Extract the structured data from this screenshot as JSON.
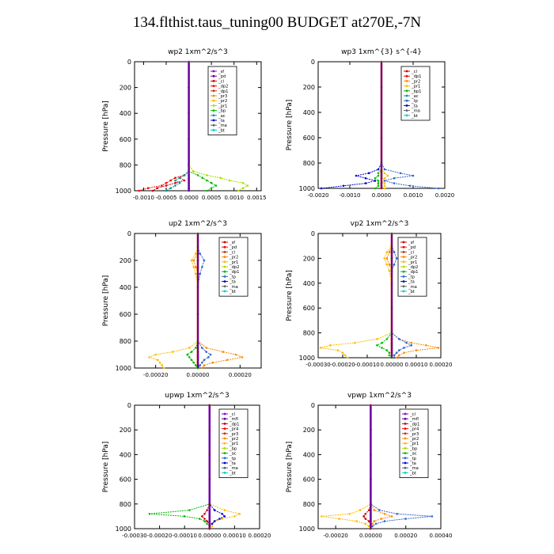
{
  "title": "134.flthist.taus_tuning00  BUDGET at270E,-7N",
  "chart_data": [
    {
      "type": "line",
      "title": "wp2   1xm^2/s^3",
      "ylabel": "Pressure [hPa]",
      "xlim": [
        -0.0012,
        0.0016
      ],
      "ylim": [
        1000,
        0
      ],
      "xticks": [
        -0.001,
        -0.0005,
        0.0,
        0.0005,
        0.001,
        0.0015
      ],
      "xticklabels": [
        "-0.0010",
        "-0.0005",
        "0.0000",
        "0.0005",
        "0.0010",
        "0.0015"
      ],
      "yticks": [
        0,
        200,
        400,
        600,
        800,
        1000
      ],
      "legend": [
        "_sf",
        "_pd",
        "_cl",
        "_dp2",
        "_dp1",
        "_pr3",
        "_pr2",
        "_pr1",
        "_bp",
        "_ac",
        "_ta",
        "_ma",
        "_bt"
      ],
      "colors": [
        "#8800cc",
        "#660099",
        "#cc0000",
        "#ff0000",
        "#cc3300",
        "#ff8800",
        "#ffbb00",
        "#aadd00",
        "#00bb00",
        "#009999",
        "#0000cc",
        "#666666",
        "#00cccc"
      ],
      "p": [
        0,
        200,
        400,
        600,
        800,
        850,
        880,
        900,
        920,
        940,
        960,
        980,
        1000
      ],
      "series": [
        {
          "name": "_sf",
          "values": [
            0,
            0,
            0,
            0,
            0,
            0,
            0,
            0,
            0,
            0,
            0,
            0,
            0
          ]
        },
        {
          "name": "_cl",
          "values": [
            0,
            0,
            0,
            0,
            0,
            0,
            -0.0001,
            -0.0002,
            -0.0001,
            -0.0003,
            -0.0005,
            -0.0007,
            -0.0008
          ]
        },
        {
          "name": "_dp2",
          "values": [
            0,
            0,
            0,
            0,
            0,
            0,
            -0.0001,
            -0.0003,
            -0.0004,
            -0.0005,
            -0.0006,
            -0.0009,
            -0.0011
          ]
        },
        {
          "name": "_pr1",
          "values": [
            0,
            0,
            0,
            0,
            0,
            0.0001,
            0.0004,
            0.0007,
            0.0009,
            0.0012,
            0.0013,
            0.0012,
            0.0011
          ]
        },
        {
          "name": "_bp",
          "values": [
            0,
            0,
            0,
            0,
            0,
            0,
            0.0002,
            0.0003,
            0.0004,
            0.0005,
            0.0006,
            0.0005,
            0.0004
          ]
        },
        {
          "name": "_ac",
          "values": [
            0,
            0,
            0,
            0,
            0,
            0,
            -0.0001,
            -0.0002,
            -0.0003,
            -0.0002,
            -0.0003,
            -0.0004,
            -0.0005
          ]
        }
      ]
    },
    {
      "type": "line",
      "title": "wp3   1xm^{3} s^{-4}",
      "ylabel": "Pressure [hPa]",
      "xlim": [
        -0.002,
        0.002
      ],
      "ylim": [
        1000,
        0
      ],
      "xticks": [
        -0.002,
        -0.001,
        0.0,
        0.001,
        0.002
      ],
      "xticklabels": [
        "-0.0020",
        "-0.0010",
        "0.0000",
        "0.0010",
        "0.0020"
      ],
      "yticks": [
        0,
        200,
        400,
        600,
        800,
        1000
      ],
      "legend": [
        "_cl",
        "_dp1",
        "_pr2",
        "_pr1",
        "_bp1",
        "_ac",
        "_tp",
        "_ta",
        "_ma",
        "_bt"
      ],
      "colors": [
        "#cc0000",
        "#ff0000",
        "#ff8800",
        "#ffbb00",
        "#00bb00",
        "#009999",
        "#3366cc",
        "#0000cc",
        "#666666",
        "#00cccc"
      ],
      "p": [
        0,
        200,
        400,
        600,
        800,
        850,
        880,
        900,
        920,
        940,
        960,
        980,
        1000
      ],
      "series": [
        {
          "name": "_cl",
          "values": [
            0,
            0,
            0,
            0,
            0,
            0,
            0,
            0,
            0,
            0,
            0,
            0,
            0
          ]
        },
        {
          "name": "_tp",
          "values": [
            0,
            0,
            0,
            0,
            0,
            0.0001,
            0.0006,
            0.001,
            0.0004,
            0.0001,
            0.0004,
            0.0009,
            0.0018
          ]
        },
        {
          "name": "_ta",
          "values": [
            0,
            0,
            0,
            0,
            0,
            -0.0001,
            -0.0004,
            -0.0008,
            -0.0005,
            -0.0002,
            -0.0005,
            -0.0012,
            -0.0019
          ]
        },
        {
          "name": "_pr1",
          "values": [
            0,
            0,
            0,
            0,
            0,
            0,
            0.0001,
            0.0002,
            0.0001,
            0,
            0.0001,
            0.0001,
            0.0001
          ]
        },
        {
          "name": "_bp1",
          "values": [
            0,
            0,
            0,
            0,
            0,
            0,
            -0.0001,
            -0.0001,
            -0.0002,
            -0.0001,
            -0.0001,
            -0.0001,
            -0.0002
          ]
        }
      ]
    },
    {
      "type": "line",
      "title": "up2   1xm^2/s^3",
      "ylabel": "Pressure [hPa]",
      "xlim": [
        -0.0003,
        0.0003
      ],
      "ylim": [
        1000,
        0
      ],
      "xticks": [
        -0.0002,
        0.0,
        0.0002
      ],
      "xticklabels": [
        "-0.00020",
        "0.00000",
        "0.00020"
      ],
      "yticks": [
        0,
        200,
        400,
        600,
        800,
        1000
      ],
      "legend": [
        "_sf",
        "_pd",
        "_cl",
        "_pr2",
        "_pr1",
        "_dp2",
        "_dp1",
        "_tp",
        "_ta",
        "_ma",
        "_bt"
      ],
      "colors": [
        "#cc0000",
        "#ff0000",
        "#cc3300",
        "#ff8800",
        "#ffbb00",
        "#aadd00",
        "#00bb00",
        "#3366cc",
        "#0000cc",
        "#666666",
        "#00cccc"
      ],
      "p": [
        0,
        100,
        150,
        200,
        250,
        300,
        400,
        600,
        800,
        850,
        880,
        900,
        920,
        940,
        960,
        980,
        1000
      ],
      "series": [
        {
          "name": "_sf",
          "values": [
            0,
            0,
            0,
            0,
            0,
            0,
            0,
            0,
            0,
            0,
            0,
            0,
            0,
            0,
            0,
            0,
            0
          ]
        },
        {
          "name": "_pr2",
          "values": [
            0,
            0,
            0,
            -2e-05,
            -1e-05,
            0,
            0,
            0,
            0,
            4e-05,
            0.00012,
            0.00018,
            0.00021,
            0.00014,
            7e-05,
            3e-05,
            2e-05
          ]
        },
        {
          "name": "_pr1",
          "values": [
            0,
            0,
            -1e-05,
            -3e-05,
            -2e-05,
            -1e-05,
            0,
            0,
            0,
            -4e-05,
            -0.00012,
            -0.0002,
            -0.00023,
            -0.00019,
            -0.00018,
            -0.00017,
            -0.00016
          ]
        },
        {
          "name": "_tp",
          "values": [
            0,
            0,
            1e-05,
            3e-05,
            2e-05,
            1e-05,
            0,
            0,
            0,
            2e-05,
            4e-05,
            6e-05,
            5e-05,
            3e-05,
            2e-05,
            1e-05,
            0
          ]
        },
        {
          "name": "_dp1",
          "values": [
            0,
            0,
            0,
            0,
            0,
            0,
            0,
            0,
            0,
            -1e-05,
            -3e-05,
            -5e-05,
            -4e-05,
            -3e-05,
            -2e-05,
            -1e-05,
            0
          ]
        }
      ]
    },
    {
      "type": "line",
      "title": "vp2   1xm^2/s^3",
      "ylabel": "Pressure [hPa]",
      "xlim": [
        -0.0003,
        0.0002
      ],
      "ylim": [
        1000,
        0
      ],
      "xticks": [
        -0.0003,
        -0.0002,
        -0.0001,
        0.0,
        0.0001,
        0.0002
      ],
      "xticklabels": [
        "-0.00030",
        "-0.00020",
        "-0.00010",
        "0.00000",
        "0.00010",
        "0.00020"
      ],
      "yticks": [
        0,
        200,
        400,
        600,
        800,
        1000
      ],
      "legend": [
        "_sf",
        "_pd",
        "_cl",
        "_pr2",
        "_pr1",
        "_dp2",
        "_dp1",
        "_tp",
        "_ta",
        "_ma",
        "_bt"
      ],
      "colors": [
        "#cc0000",
        "#ff0000",
        "#cc3300",
        "#ff8800",
        "#ffbb00",
        "#aadd00",
        "#00bb00",
        "#3366cc",
        "#0000cc",
        "#666666",
        "#00cccc"
      ],
      "p": [
        0,
        100,
        150,
        200,
        250,
        300,
        400,
        600,
        800,
        850,
        880,
        900,
        920,
        940,
        960,
        980,
        1000
      ],
      "series": [
        {
          "name": "_sf",
          "values": [
            0,
            0,
            0,
            0,
            0,
            0,
            0,
            0,
            0,
            0,
            0,
            0,
            0,
            0,
            0,
            0,
            0
          ]
        },
        {
          "name": "_pr2",
          "values": [
            0,
            0,
            -1e-05,
            -2e-05,
            -1e-05,
            0,
            0,
            0,
            0,
            3e-05,
            8e-05,
            0.00014,
            0.00019,
            0.0001,
            5e-05,
            3e-05,
            2e-05
          ]
        },
        {
          "name": "_pr1",
          "values": [
            0,
            0,
            -2e-05,
            -3e-05,
            -2e-05,
            -1e-05,
            0,
            0,
            0,
            -6e-05,
            -0.00015,
            -0.00025,
            -0.00029,
            -0.00022,
            -0.0002,
            -0.00019,
            -0.00018
          ]
        },
        {
          "name": "_tp",
          "values": [
            0,
            0,
            1e-05,
            2e-05,
            1e-05,
            0,
            0,
            0,
            0,
            3e-05,
            6e-05,
            8e-05,
            5e-05,
            3e-05,
            2e-05,
            1e-05,
            1e-05
          ]
        },
        {
          "name": "_dp1",
          "values": [
            0,
            0,
            0,
            0,
            0,
            0,
            0,
            0,
            0,
            -2e-05,
            -4e-05,
            -6e-05,
            -4e-05,
            -2e-05,
            -1e-05,
            -1e-05,
            0
          ]
        }
      ]
    },
    {
      "type": "line",
      "title": "upwp   1xm^2/s^3",
      "ylabel": "Pressure [hPa]",
      "xlim": [
        -0.0003,
        0.0002
      ],
      "ylim": [
        1000,
        0
      ],
      "xticks": [
        -0.0003,
        -0.0002,
        -0.0001,
        0.0,
        0.0001,
        0.0002
      ],
      "xticklabels": [
        "-0.00030",
        "-0.00020",
        "-0.00010",
        "0.00000",
        "0.00010",
        "0.00020"
      ],
      "yticks": [
        0,
        200,
        400,
        600,
        800,
        1000
      ],
      "legend": [
        "_cl",
        "_mfl",
        "_dp1",
        "_pr4",
        "_pr3",
        "_pr2",
        "_pr1",
        "_bp",
        "_ac",
        "_tp",
        "_ta",
        "_ma",
        "_bt"
      ],
      "colors": [
        "#8800cc",
        "#660099",
        "#cc0000",
        "#ff0000",
        "#cc3300",
        "#ff8800",
        "#ffbb00",
        "#aadd00",
        "#00bb00",
        "#3366cc",
        "#0000cc",
        "#666666",
        "#00cccc"
      ],
      "p": [
        0,
        200,
        400,
        600,
        800,
        850,
        880,
        900,
        920,
        940,
        960,
        980,
        1000
      ],
      "series": [
        {
          "name": "_cl",
          "values": [
            0,
            0,
            0,
            0,
            0,
            0,
            0,
            0,
            0,
            0,
            0,
            0,
            0
          ]
        },
        {
          "name": "_pr1",
          "values": [
            0,
            0,
            0,
            0,
            0,
            6e-05,
            0.00012,
            0.0001,
            5e-05,
            2e-05,
            1e-05,
            1e-05,
            0
          ]
        },
        {
          "name": "_ac",
          "values": [
            0,
            0,
            0,
            0,
            0,
            -8e-05,
            -0.00024,
            -0.0001,
            -4e-05,
            -2e-05,
            -1e-05,
            0,
            0
          ]
        },
        {
          "name": "_ta",
          "values": [
            0,
            0,
            0,
            0,
            0,
            2e-05,
            5e-05,
            6e-05,
            4e-05,
            2e-05,
            1e-05,
            0,
            0
          ]
        },
        {
          "name": "_dp1",
          "values": [
            0,
            0,
            0,
            0,
            0,
            -1e-05,
            -2e-05,
            -3e-05,
            -2e-05,
            -1e-05,
            0,
            0,
            0
          ]
        }
      ]
    },
    {
      "type": "line",
      "title": "vpwp   1xm^2/s^3",
      "ylabel": "Pressure [hPa]",
      "xlim": [
        -0.0003,
        0.0004
      ],
      "ylim": [
        1000,
        0
      ],
      "xticks": [
        -0.0002,
        0.0,
        0.0002,
        0.0004
      ],
      "xticklabels": [
        "-0.00020",
        "0.00000",
        "0.00020",
        "0.00040"
      ],
      "yticks": [
        0,
        200,
        400,
        600,
        800,
        1000
      ],
      "legend": [
        "_cl",
        "_mfl",
        "_dp1",
        "_pr4",
        "_pr3",
        "_pr2",
        "_pr1",
        "_bp",
        "_ac",
        "_tp",
        "_ta",
        "_ma",
        "_bt"
      ],
      "colors": [
        "#8800cc",
        "#660099",
        "#cc0000",
        "#ff0000",
        "#cc3300",
        "#ff8800",
        "#ffbb00",
        "#aadd00",
        "#00bb00",
        "#3366cc",
        "#0000cc",
        "#666666",
        "#00cccc"
      ],
      "p": [
        0,
        200,
        400,
        600,
        800,
        850,
        880,
        900,
        920,
        940,
        960,
        980,
        1000
      ],
      "series": [
        {
          "name": "_cl",
          "values": [
            0,
            0,
            0,
            0,
            0,
            0,
            0,
            0,
            0,
            0,
            0,
            0,
            0
          ]
        },
        {
          "name": "_tp",
          "values": [
            0,
            0,
            0,
            0,
            0,
            5e-05,
            0.00015,
            0.00035,
            0.0002,
            8e-05,
            3e-05,
            1e-05,
            0
          ]
        },
        {
          "name": "_pr1",
          "values": [
            0,
            0,
            0,
            0,
            0,
            -6e-05,
            -0.00012,
            -0.00028,
            -0.00018,
            -8e-05,
            -3e-05,
            -1e-05,
            0
          ]
        },
        {
          "name": "_pr2",
          "values": [
            0,
            0,
            0,
            0,
            0,
            2e-05,
            8e-05,
            0.00012,
            6e-05,
            2e-05,
            1e-05,
            0,
            0
          ]
        },
        {
          "name": "_dp1",
          "values": [
            0,
            0,
            0,
            0,
            0,
            -1e-05,
            -3e-05,
            -4e-05,
            -3e-05,
            -1e-05,
            0,
            0,
            0
          ]
        }
      ]
    }
  ]
}
